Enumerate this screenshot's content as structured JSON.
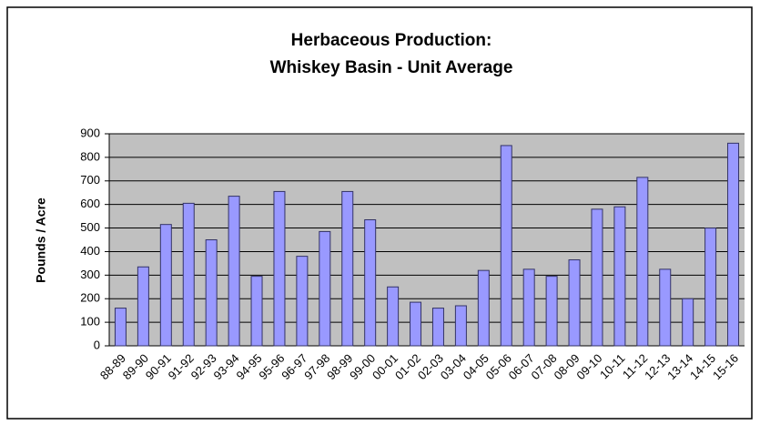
{
  "chart_data": {
    "type": "bar",
    "title": [
      "Herbaceous Production:",
      "Whiskey Basin - Unit Average"
    ],
    "y_label": "Pounds / Acre",
    "categories": [
      "88-89",
      "89-90",
      "90-91",
      "91-92",
      "92-93",
      "93-94",
      "94-95",
      "95-96",
      "96-97",
      "97-98",
      "98-99",
      "99-00",
      "00-01",
      "01-02",
      "02-03",
      "03-04",
      "04-05",
      "05-06",
      "06-07",
      "07-08",
      "08-09",
      "09-10",
      "10-11",
      "11-12",
      "12-13",
      "13-14",
      "14-15",
      "15-16"
    ],
    "values": [
      160,
      335,
      515,
      605,
      450,
      635,
      295,
      655,
      380,
      485,
      655,
      535,
      250,
      185,
      160,
      170,
      320,
      850,
      325,
      295,
      365,
      580,
      590,
      715,
      325,
      200,
      500,
      860
    ],
    "color": "#9999ff",
    "ylim": [
      0,
      900
    ],
    "yticks": [
      0,
      100,
      200,
      300,
      400,
      500,
      600,
      700,
      800,
      900
    ],
    "grid": true
  }
}
